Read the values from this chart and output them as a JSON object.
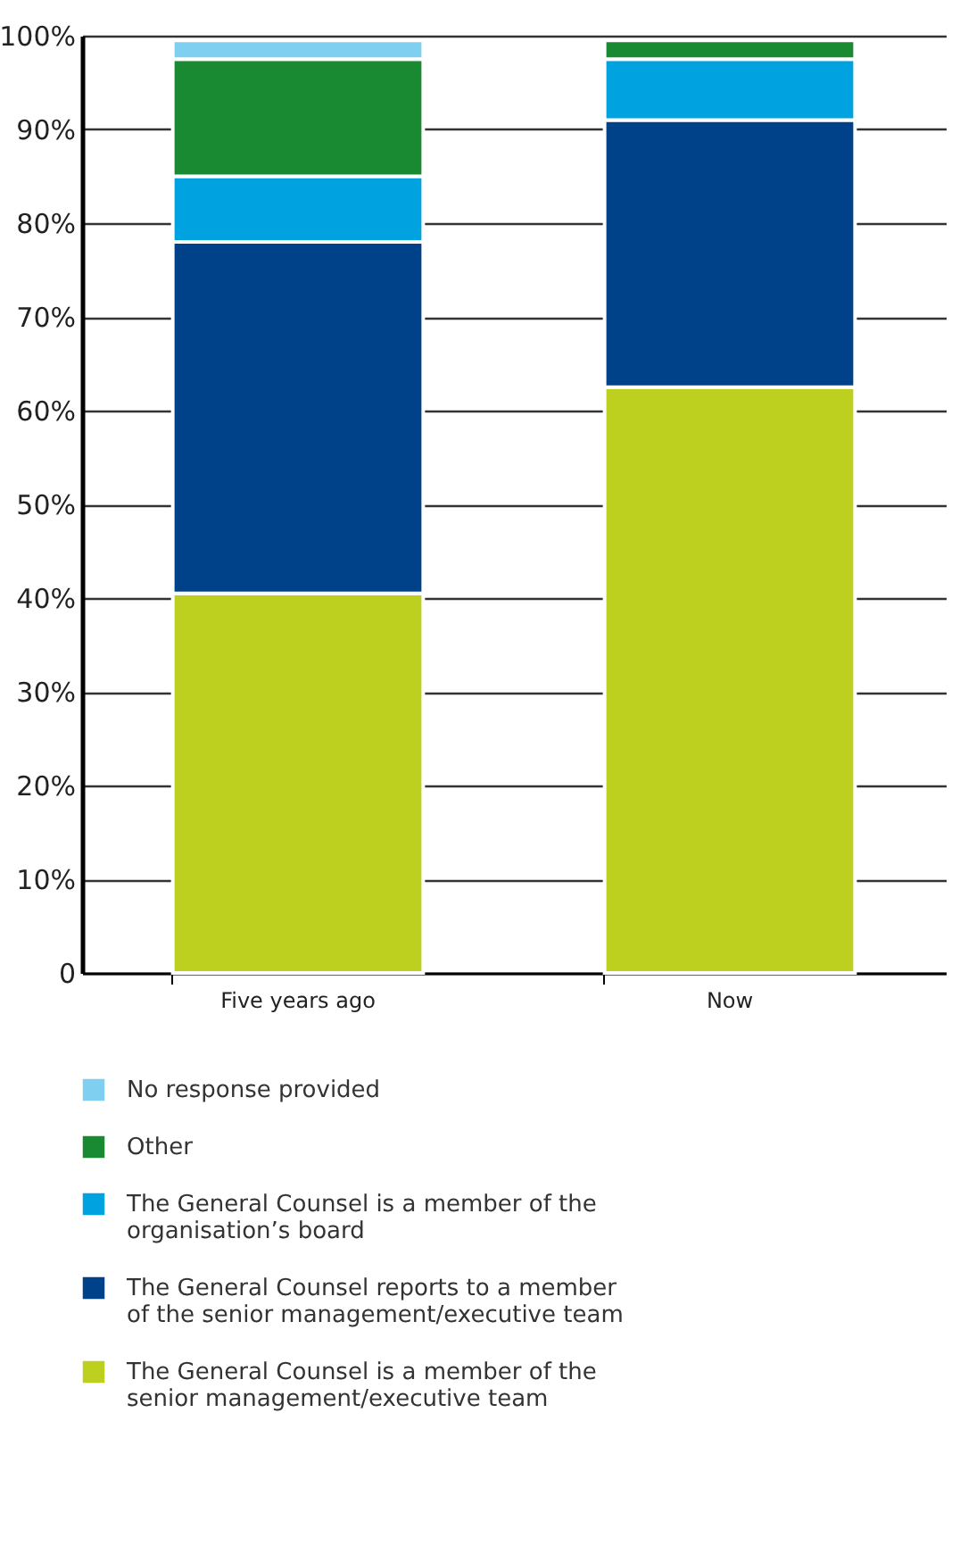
{
  "chart_data": {
    "type": "bar",
    "stacked": true,
    "categories": [
      "Five years ago",
      "Now"
    ],
    "series": [
      {
        "name": "The General Counsel is a member of the senior management/executive team",
        "color": "#bdd020",
        "values": [
          40.5,
          62.5
        ]
      },
      {
        "name": "The General Counsel reports to a member of the senior management/executive team",
        "color": "#00428a",
        "values": [
          37.5,
          28.5
        ]
      },
      {
        "name": "The General Counsel is a member of the organisation’s board",
        "color": "#00a3e0",
        "values": [
          7,
          6.5
        ]
      },
      {
        "name": "Other",
        "color": "#1a8a32",
        "values": [
          12.5,
          2
        ]
      },
      {
        "name": "No response provided",
        "color": "#7fd0f0",
        "values": [
          2,
          null
        ]
      }
    ],
    "ylim": [
      0,
      100
    ],
    "yticks": [
      {
        "value": 0,
        "label": "0"
      },
      {
        "value": 10,
        "label": "10%"
      },
      {
        "value": 20,
        "label": "20%"
      },
      {
        "value": 30,
        "label": "30%"
      },
      {
        "value": 40,
        "label": "40%"
      },
      {
        "value": 50,
        "label": "50%"
      },
      {
        "value": 60,
        "label": "60%"
      },
      {
        "value": 70,
        "label": "70%"
      },
      {
        "value": 80,
        "label": "80%"
      },
      {
        "value": 90,
        "label": "90%"
      },
      {
        "value": 100,
        "label": "100%"
      }
    ],
    "grid": "y",
    "legend": "bottom"
  }
}
